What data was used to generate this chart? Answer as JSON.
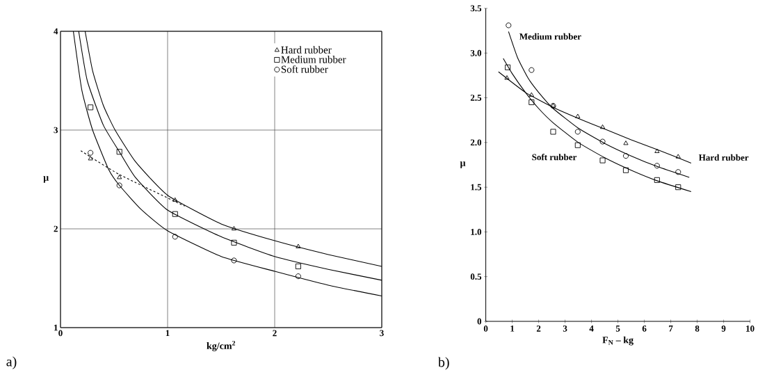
{
  "chart_data": [
    {
      "type": "scatter",
      "xlabel": "kg/cm$^{2}$",
      "ylabel": "μ",
      "xlim": [
        0,
        3
      ],
      "ylim": [
        1,
        4
      ],
      "xticks": [
        0,
        1,
        2,
        3
      ],
      "yticks": [
        1,
        2,
        3,
        4
      ],
      "grid": true,
      "legend": "top right",
      "annotations": [
        "a)"
      ],
      "series": [
        {
          "name": "Hard rubber",
          "marker": "triangle",
          "color": "#000000",
          "x": [
            0.28,
            0.55,
            1.07,
            1.62,
            2.22
          ],
          "values": [
            2.71,
            2.52,
            2.29,
            2.0,
            1.82
          ]
        },
        {
          "name": "Medium rubber",
          "marker": "square",
          "color": "#000000",
          "x": [
            0.28,
            0.55,
            1.07,
            1.62,
            2.22
          ],
          "values": [
            3.23,
            2.78,
            2.15,
            1.86,
            1.62
          ]
        },
        {
          "name": "Soft rubber",
          "marker": "circle",
          "color": "#000000",
          "x": [
            0.28,
            0.55,
            1.07,
            1.62,
            2.22
          ],
          "values": [
            2.77,
            2.44,
            1.92,
            1.68,
            1.52
          ]
        },
        {
          "type": "line",
          "marker": "none",
          "line_style": "solid",
          "color": "#000000",
          "x": [
            0.23,
            0.3,
            0.4,
            0.51,
            0.7,
            1.0,
            1.5,
            2.0,
            2.5,
            3.0
          ],
          "values": [
            4.0,
            3.6,
            3.25,
            3.0,
            2.68,
            2.34,
            2.05,
            1.88,
            1.74,
            1.62
          ]
        },
        {
          "type": "line",
          "marker": "none",
          "line_style": "solid",
          "color": "#000000",
          "x": [
            0.17,
            0.25,
            0.4,
            0.55,
            0.7,
            1.0,
            1.5,
            2.0,
            2.5,
            3.0
          ],
          "values": [
            4.0,
            3.5,
            3.05,
            2.78,
            2.52,
            2.19,
            1.92,
            1.72,
            1.59,
            1.48
          ]
        },
        {
          "type": "line",
          "marker": "none",
          "line_style": "solid",
          "color": "#000000",
          "x": [
            0.12,
            0.2,
            0.3,
            0.45,
            0.55,
            0.75,
            1.0,
            1.5,
            2.0,
            2.5,
            3.0
          ],
          "values": [
            4.0,
            3.4,
            3.0,
            2.6,
            2.44,
            2.2,
            1.98,
            1.72,
            1.57,
            1.43,
            1.32
          ]
        },
        {
          "type": "line",
          "marker": "none",
          "line_style": "dashed",
          "color": "#000000",
          "x": [
            0.19,
            0.55,
            1.16
          ],
          "values": [
            2.79,
            2.55,
            2.23
          ]
        }
      ]
    },
    {
      "type": "scatter",
      "xlabel": "F$_{N}$ – kg",
      "ylabel": "μ",
      "xlim": [
        0,
        10
      ],
      "ylim": [
        0,
        3.5
      ],
      "xticks": [
        0,
        1,
        2,
        3,
        4,
        5,
        6,
        7,
        8,
        9,
        10
      ],
      "yticks": [
        0,
        {
          "value": 0.5,
          "label": "0.5"
        },
        {
          "value": 1,
          "label": "1.0"
        },
        {
          "value": 1.5,
          "label": "1.5"
        },
        {
          "value": 2,
          "label": "2.0"
        },
        {
          "value": 2.5,
          "label": "2.5"
        },
        {
          "value": 3,
          "label": "3.0"
        },
        {
          "value": 3.5,
          "label": "3.5"
        }
      ],
      "annotations": [
        "b)"
      ],
      "series": [
        {
          "name": "Medium rubber",
          "marker": "circle",
          "color": "#000000",
          "x": [
            0.86,
            1.73,
            2.55,
            3.48,
            4.42,
            5.3,
            6.48,
            7.28
          ],
          "values": [
            3.31,
            2.81,
            2.41,
            2.12,
            2.01,
            1.85,
            1.74,
            1.67
          ]
        },
        {
          "name": "Soft rubber",
          "marker": "square",
          "color": "#000000",
          "x": [
            0.83,
            1.73,
            2.55,
            3.48,
            4.42,
            5.3,
            6.48,
            7.28
          ],
          "values": [
            2.84,
            2.45,
            2.12,
            1.97,
            1.8,
            1.69,
            1.58,
            1.5
          ]
        },
        {
          "name": "Hard rubber",
          "marker": "triangle",
          "color": "#000000",
          "x": [
            0.8,
            1.73,
            2.55,
            3.48,
            4.42,
            5.3,
            6.48,
            7.28
          ],
          "values": [
            2.72,
            2.53,
            2.41,
            2.29,
            2.17,
            1.99,
            1.9,
            1.84
          ]
        },
        {
          "type": "line",
          "marker": "none",
          "line_style": "solid",
          "color": "#000000",
          "x": [
            0.86,
            1.2,
            1.6,
            2.0,
            2.55,
            3.5,
            4.5,
            5.5,
            6.5,
            7.7
          ],
          "values": [
            3.24,
            2.95,
            2.72,
            2.56,
            2.38,
            2.16,
            1.99,
            1.85,
            1.73,
            1.61
          ]
        },
        {
          "type": "line",
          "marker": "none",
          "line_style": "solid",
          "color": "#000000",
          "x": [
            0.66,
            1.0,
            1.5,
            2.0,
            2.55,
            3.5,
            4.5,
            5.5,
            6.5,
            7.77
          ],
          "values": [
            2.94,
            2.77,
            2.56,
            2.38,
            2.22,
            2.0,
            1.83,
            1.69,
            1.57,
            1.45
          ]
        },
        {
          "type": "line",
          "marker": "none",
          "line_style": "solid",
          "color": "#000000",
          "x": [
            0.48,
            1.5,
            2.5,
            3.5,
            4.5,
            5.5,
            6.5,
            7.77
          ],
          "values": [
            2.79,
            2.56,
            2.4,
            2.27,
            2.15,
            2.03,
            1.92,
            1.77
          ]
        }
      ]
    }
  ]
}
